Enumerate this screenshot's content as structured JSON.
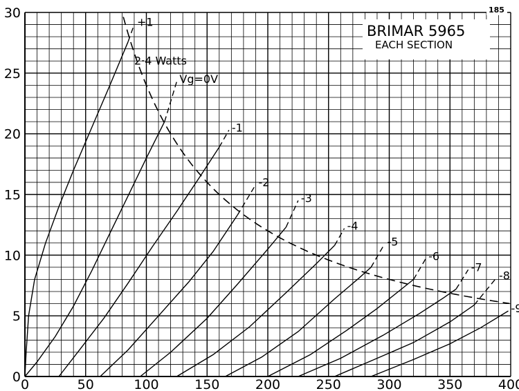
{
  "chart_data": {
    "type": "line",
    "title": "BRIMAR 5965",
    "subtitle": "EACH SECTION",
    "corner_label": "185",
    "xlim": [
      0,
      400
    ],
    "ylim": [
      0,
      30
    ],
    "x_ticks": [
      0,
      50,
      100,
      150,
      200,
      250,
      300,
      350,
      400
    ],
    "y_ticks": [
      0,
      5,
      10,
      15,
      20,
      25,
      30
    ],
    "x_tick_labels": [
      "0",
      "50",
      "100",
      "150",
      "200",
      "250",
      "300",
      "350",
      "400"
    ],
    "y_tick_labels": [
      "0",
      "5",
      "10",
      "15",
      "20",
      "25",
      "30"
    ],
    "grid": true,
    "series": [
      {
        "label": "+1",
        "points": [
          [
            0,
            0
          ],
          [
            1,
            2
          ],
          [
            3,
            5
          ],
          [
            8,
            8
          ],
          [
            17,
            11
          ],
          [
            28,
            14
          ],
          [
            40,
            17
          ],
          [
            55,
            20.5
          ],
          [
            70,
            24
          ],
          [
            85,
            27.6
          ]
        ],
        "dashed_to": [
          90,
          29
        ]
      },
      {
        "label": "Vg=0V",
        "points": [
          [
            0,
            0
          ],
          [
            10,
            1.2
          ],
          [
            25,
            3.3
          ],
          [
            40,
            5.8
          ],
          [
            55,
            8.7
          ],
          [
            70,
            11.8
          ],
          [
            85,
            14.9
          ],
          [
            100,
            18
          ],
          [
            115,
            21
          ]
        ],
        "dashed_to": [
          125,
          24.3
        ]
      },
      {
        "label": "-1",
        "points": [
          [
            28,
            0
          ],
          [
            45,
            2.2
          ],
          [
            65,
            4.8
          ],
          [
            85,
            7.7
          ],
          [
            105,
            10.7
          ],
          [
            125,
            13.6
          ],
          [
            145,
            16.6
          ],
          [
            160,
            18.9
          ]
        ],
        "dashed_to": [
          168,
          20.3
        ]
      },
      {
        "label": "-2",
        "points": [
          [
            62,
            0
          ],
          [
            85,
            2.2
          ],
          [
            110,
            5
          ],
          [
            135,
            7.8
          ],
          [
            155,
            10.3
          ],
          [
            175,
            13.3
          ]
        ],
        "dashed_to": [
          190,
          15.8
        ]
      },
      {
        "label": "-3",
        "points": [
          [
            95,
            0
          ],
          [
            120,
            2
          ],
          [
            150,
            4.8
          ],
          [
            175,
            7.6
          ],
          [
            200,
            10.5
          ],
          [
            215,
            12.3
          ]
        ],
        "dashed_to": [
          225,
          14.5
        ]
      },
      {
        "label": "-4",
        "points": [
          [
            125,
            0
          ],
          [
            155,
            1.8
          ],
          [
            185,
            4.1
          ],
          [
            215,
            6.9
          ],
          [
            240,
            9.3
          ],
          [
            255,
            10.8
          ]
        ],
        "dashed_to": [
          263,
          12.2
        ]
      },
      {
        "label": "-5",
        "points": [
          [
            165,
            0
          ],
          [
            195,
            1.6
          ],
          [
            225,
            3.7
          ],
          [
            255,
            6.4
          ],
          [
            275,
            8.1
          ],
          [
            285,
            9
          ]
        ],
        "dashed_to": [
          296,
          10.9
        ]
      },
      {
        "label": "-6",
        "points": [
          [
            200,
            0
          ],
          [
            235,
            1.8
          ],
          [
            265,
            3.8
          ],
          [
            290,
            5.6
          ],
          [
            310,
            7.2
          ],
          [
            320,
            8
          ]
        ],
        "dashed_to": [
          330,
          9.7
        ]
      },
      {
        "label": "-7",
        "points": [
          [
            225,
            0
          ],
          [
            260,
            1.5
          ],
          [
            295,
            3.4
          ],
          [
            325,
            5.2
          ],
          [
            345,
            6.5
          ],
          [
            355,
            7.2
          ]
        ],
        "dashed_to": [
          365,
          8.8
        ]
      },
      {
        "label": "-8",
        "points": [
          [
            255,
            0
          ],
          [
            290,
            1.5
          ],
          [
            320,
            2.8
          ],
          [
            350,
            4.5
          ],
          [
            370,
            5.9
          ]
        ],
        "dashed_to": [
          388,
          8.1
        ]
      },
      {
        "label": "-9",
        "points": [
          [
            285,
            0
          ],
          [
            320,
            1.4
          ],
          [
            350,
            2.7
          ],
          [
            375,
            4
          ],
          [
            398,
            5.4
          ]
        ],
        "dashed_to": null
      }
    ],
    "dissipation_curve": {
      "label": "2·4 Watts",
      "watts": 2.4,
      "x_range": [
        75,
        400
      ]
    },
    "curve_labels": [
      "+1",
      "2·4 Watts",
      "Vg=0V",
      "-1",
      "-2",
      "-3",
      "-4",
      "-5",
      "-6",
      "-7",
      "-8",
      "-9"
    ]
  }
}
